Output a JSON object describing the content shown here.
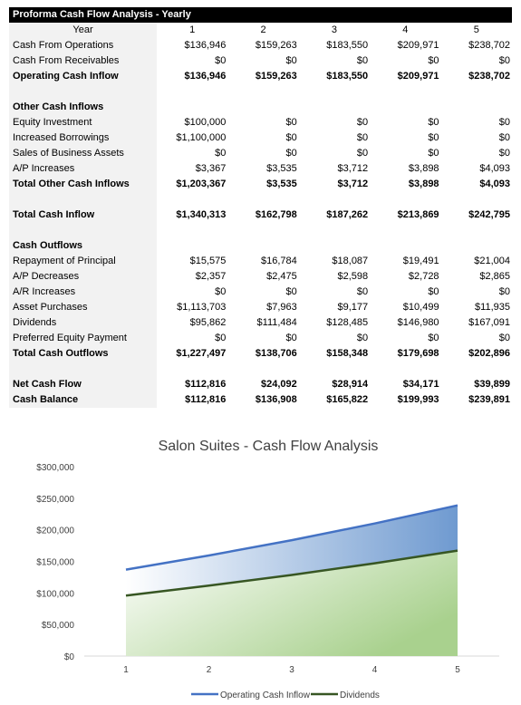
{
  "sheet": {
    "title": "Proforma Cash Flow Analysis - Yearly",
    "header": {
      "label": "Year",
      "years": [
        "1",
        "2",
        "3",
        "4",
        "5"
      ]
    },
    "rows": [
      {
        "label": "Cash From Operations",
        "values": [
          "$136,946",
          "$159,263",
          "$183,550",
          "$209,971",
          "$238,702"
        ],
        "bold": false
      },
      {
        "label": "Cash From Receivables",
        "values": [
          "$0",
          "$0",
          "$0",
          "$0",
          "$0"
        ],
        "bold": false
      },
      {
        "label": "Operating Cash Inflow",
        "values": [
          "$136,946",
          "$159,263",
          "$183,550",
          "$209,971",
          "$238,702"
        ],
        "bold": true
      },
      {
        "label": "",
        "values": [
          "",
          "",
          "",
          "",
          ""
        ],
        "bold": false
      },
      {
        "label": "Other Cash Inflows",
        "values": [
          "",
          "",
          "",
          "",
          ""
        ],
        "bold": true
      },
      {
        "label": "Equity Investment",
        "values": [
          "$100,000",
          "$0",
          "$0",
          "$0",
          "$0"
        ],
        "bold": false
      },
      {
        "label": "Increased Borrowings",
        "values": [
          "$1,100,000",
          "$0",
          "$0",
          "$0",
          "$0"
        ],
        "bold": false
      },
      {
        "label": "Sales of Business Assets",
        "values": [
          "$0",
          "$0",
          "$0",
          "$0",
          "$0"
        ],
        "bold": false
      },
      {
        "label": "A/P Increases",
        "values": [
          "$3,367",
          "$3,535",
          "$3,712",
          "$3,898",
          "$4,093"
        ],
        "bold": false
      },
      {
        "label": "Total Other Cash Inflows",
        "values": [
          "$1,203,367",
          "$3,535",
          "$3,712",
          "$3,898",
          "$4,093"
        ],
        "bold": true
      },
      {
        "label": "",
        "values": [
          "",
          "",
          "",
          "",
          ""
        ],
        "bold": false
      },
      {
        "label": "Total Cash Inflow",
        "values": [
          "$1,340,313",
          "$162,798",
          "$187,262",
          "$213,869",
          "$242,795"
        ],
        "bold": true
      },
      {
        "label": "",
        "values": [
          "",
          "",
          "",
          "",
          ""
        ],
        "bold": false
      },
      {
        "label": "Cash Outflows",
        "values": [
          "",
          "",
          "",
          "",
          ""
        ],
        "bold": true
      },
      {
        "label": "Repayment of Principal",
        "values": [
          "$15,575",
          "$16,784",
          "$18,087",
          "$19,491",
          "$21,004"
        ],
        "bold": false
      },
      {
        "label": "A/P Decreases",
        "values": [
          "$2,357",
          "$2,475",
          "$2,598",
          "$2,728",
          "$2,865"
        ],
        "bold": false
      },
      {
        "label": "A/R Increases",
        "values": [
          "$0",
          "$0",
          "$0",
          "$0",
          "$0"
        ],
        "bold": false
      },
      {
        "label": "Asset Purchases",
        "values": [
          "$1,113,703",
          "$7,963",
          "$9,177",
          "$10,499",
          "$11,935"
        ],
        "bold": false
      },
      {
        "label": "Dividends",
        "values": [
          "$95,862",
          "$111,484",
          "$128,485",
          "$146,980",
          "$167,091"
        ],
        "bold": false
      },
      {
        "label": "Preferred Equity Payment",
        "values": [
          "$0",
          "$0",
          "$0",
          "$0",
          "$0"
        ],
        "bold": false
      },
      {
        "label": "Total Cash Outflows",
        "values": [
          "$1,227,497",
          "$138,706",
          "$158,348",
          "$179,698",
          "$202,896"
        ],
        "bold": true
      },
      {
        "label": "",
        "values": [
          "",
          "",
          "",
          "",
          ""
        ],
        "bold": false
      },
      {
        "label": "Net Cash Flow",
        "values": [
          "$112,816",
          "$24,092",
          "$28,914",
          "$34,171",
          "$39,899"
        ],
        "bold": true
      },
      {
        "label": "Cash Balance",
        "values": [
          "$112,816",
          "$136,908",
          "$165,822",
          "$199,993",
          "$239,891"
        ],
        "bold": true
      }
    ]
  },
  "chart_data": {
    "type": "area",
    "title": "Salon Suites - Cash Flow Analysis",
    "categories": [
      "1",
      "2",
      "3",
      "4",
      "5"
    ],
    "ylim": [
      0,
      300000
    ],
    "yticks": [
      "$0",
      "$50,000",
      "$100,000",
      "$150,000",
      "$200,000",
      "$250,000",
      "$300,000"
    ],
    "ytick_values": [
      0,
      50000,
      100000,
      150000,
      200000,
      250000,
      300000
    ],
    "grid": false,
    "legend_position": "bottom",
    "series": [
      {
        "name": "Operating Cash Inflow",
        "values": [
          136946,
          159263,
          183550,
          209971,
          238702
        ],
        "color": "#4472c4",
        "fill_from": "#ffffff",
        "fill_to": "#6f9ad0"
      },
      {
        "name": "Dividends",
        "values": [
          95862,
          111484,
          128485,
          146980,
          167091
        ],
        "color": "#375623",
        "fill_from": "#ffffff",
        "fill_to": "#a9d18e"
      }
    ]
  }
}
